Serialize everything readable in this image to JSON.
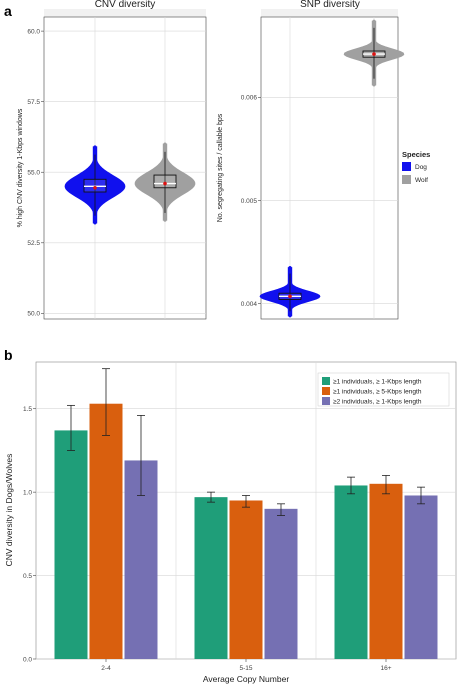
{
  "panel_labels": [
    "a",
    "b"
  ],
  "legend_species": {
    "title": "Species",
    "items": [
      {
        "label": "Dog",
        "color": "#1010ee"
      },
      {
        "label": "Wolf",
        "color": "#a0a0a0"
      }
    ]
  },
  "chart_data": [
    {
      "type": "violin",
      "title": "CNV diversity",
      "xlabel": "",
      "ylabel": "% high CNV diversity 1-Kbps windows",
      "ylim": [
        49.8,
        60.5
      ],
      "yticks": [
        "60.0",
        "57.5",
        "55.0",
        "52.5",
        "50.0"
      ],
      "ytick_values": [
        60.0,
        57.5,
        55.0,
        52.5,
        50.0
      ],
      "grid": true,
      "series": [
        {
          "name": "Dog",
          "color": "#1010ee",
          "min": 53.2,
          "q1": 54.3,
          "median": 54.5,
          "mean": 54.45,
          "q3": 54.75,
          "max": 55.9
        },
        {
          "name": "Wolf",
          "color": "#a0a0a0",
          "min": 53.3,
          "q1": 54.45,
          "median": 54.6,
          "mean": 54.6,
          "q3": 54.9,
          "max": 56.0
        }
      ]
    },
    {
      "type": "violin",
      "title": "SNP diversity",
      "xlabel": "",
      "ylabel": "No. segregating sites / callable bps",
      "ylim": [
        0.00385,
        0.00678
      ],
      "yticks": [
        "0.006",
        "0.005",
        "0.004"
      ],
      "ytick_values": [
        0.006,
        0.005,
        0.004
      ],
      "grid": true,
      "series": [
        {
          "name": "Dog",
          "color": "#1010ee",
          "min": 0.00388,
          "q1": 0.00404,
          "median": 0.00407,
          "mean": 0.00407,
          "q3": 0.0041,
          "max": 0.00435
        },
        {
          "name": "Wolf",
          "color": "#a0a0a0",
          "min": 0.00612,
          "q1": 0.00639,
          "median": 0.00642,
          "mean": 0.00642,
          "q3": 0.00645,
          "max": 0.00674
        }
      ]
    },
    {
      "type": "bar",
      "title": "",
      "xlabel": "Average Copy Number",
      "ylabel": "CNV diversity in Dogs/Wolves",
      "categories": [
        "2-4",
        "5-15",
        "16+"
      ],
      "ylim": [
        0,
        1.78
      ],
      "yticks": [
        "0.0",
        "0.5",
        "1.0",
        "1.5"
      ],
      "ytick_values": [
        0,
        0.5,
        1.0,
        1.5
      ],
      "grid": true,
      "legend_position": "top-right",
      "series": [
        {
          "name": "≥1 individuals, ≥ 1-Kbps length",
          "color": "#1f9e79",
          "values": [
            1.37,
            0.97,
            1.04
          ],
          "err_low": [
            1.25,
            0.94,
            0.99
          ],
          "err_high": [
            1.52,
            1.0,
            1.09
          ]
        },
        {
          "name": "≥1 individuals, ≥ 5-Kbps length",
          "color": "#d95f0e",
          "values": [
            1.53,
            0.95,
            1.05
          ],
          "err_low": [
            1.34,
            0.91,
            0.99
          ],
          "err_high": [
            1.74,
            0.98,
            1.1
          ]
        },
        {
          "name": "≥2 individuals, ≥ 1-Kbps length",
          "color": "#7570b3",
          "values": [
            1.19,
            0.9,
            0.98
          ],
          "err_low": [
            0.98,
            0.86,
            0.93
          ],
          "err_high": [
            1.46,
            0.93,
            1.03
          ]
        }
      ]
    }
  ]
}
